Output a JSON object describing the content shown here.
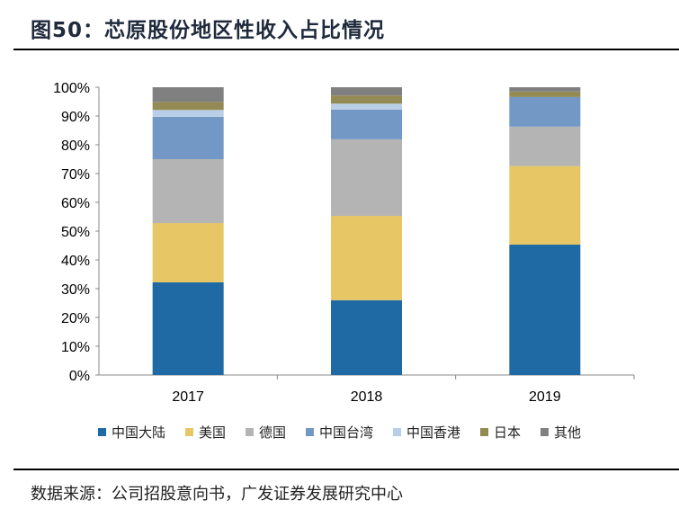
{
  "title": "图50：芯原股份地区性收入占比情况",
  "source": "数据来源：公司招股意向书，广发证券发展研究中心",
  "chart_data": {
    "type": "bar",
    "stacked": true,
    "categories": [
      "2017",
      "2018",
      "2019"
    ],
    "ylim": [
      0,
      100
    ],
    "yticks": [
      "0%",
      "10%",
      "20%",
      "30%",
      "40%",
      "50%",
      "60%",
      "70%",
      "80%",
      "90%",
      "100%"
    ],
    "grid": false,
    "legend_position": "bottom",
    "series": [
      {
        "name": "中国大陆",
        "color": "#1f6aa5",
        "values": [
          32.2,
          26.0,
          45.3
        ]
      },
      {
        "name": "美国",
        "color": "#e6c665",
        "values": [
          20.6,
          29.3,
          27.3
        ]
      },
      {
        "name": "德国",
        "color": "#b4b4b4",
        "values": [
          22.2,
          26.6,
          13.7
        ]
      },
      {
        "name": "中国台湾",
        "color": "#7498c6",
        "values": [
          14.7,
          10.3,
          10.3
        ]
      },
      {
        "name": "中国香港",
        "color": "#b9cfe8",
        "values": [
          2.4,
          2.1,
          0.0
        ]
      },
      {
        "name": "日本",
        "color": "#948a54",
        "values": [
          2.8,
          2.8,
          1.9
        ]
      },
      {
        "name": "其他",
        "color": "#808080",
        "values": [
          5.1,
          2.9,
          1.5
        ]
      }
    ]
  }
}
